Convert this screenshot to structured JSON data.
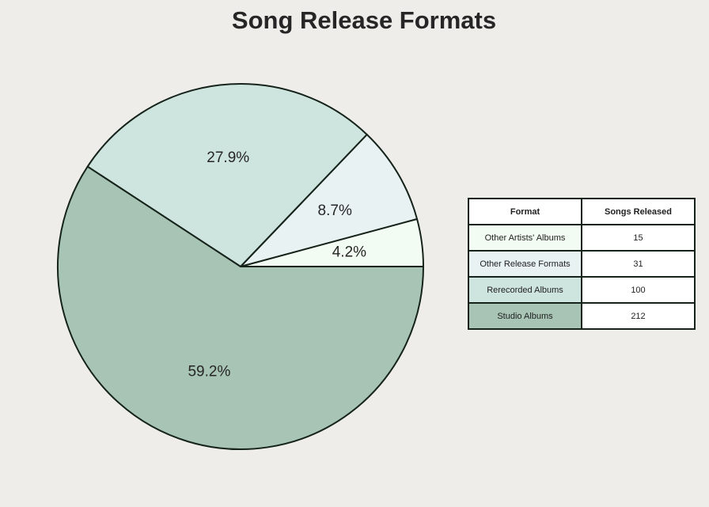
{
  "chart_data": {
    "type": "pie",
    "title": "Song Release Formats",
    "slices": [
      {
        "label": "Other Artists' Albums",
        "value": 15,
        "pct_label": "4.2%",
        "color": "#f3fcf2"
      },
      {
        "label": "Other Release Formats",
        "value": 31,
        "pct_label": "8.7%",
        "color": "#e8f2f2"
      },
      {
        "label": "Rerecorded Albums",
        "value": 100,
        "pct_label": "27.9%",
        "color": "#cee4df"
      },
      {
        "label": "Studio Albums",
        "value": 212,
        "pct_label": "59.2%",
        "color": "#a7c4b5"
      }
    ],
    "table": {
      "headers": [
        "Format",
        "Songs Released"
      ]
    },
    "edge_color": "#15231a",
    "background": "#eeede9"
  }
}
